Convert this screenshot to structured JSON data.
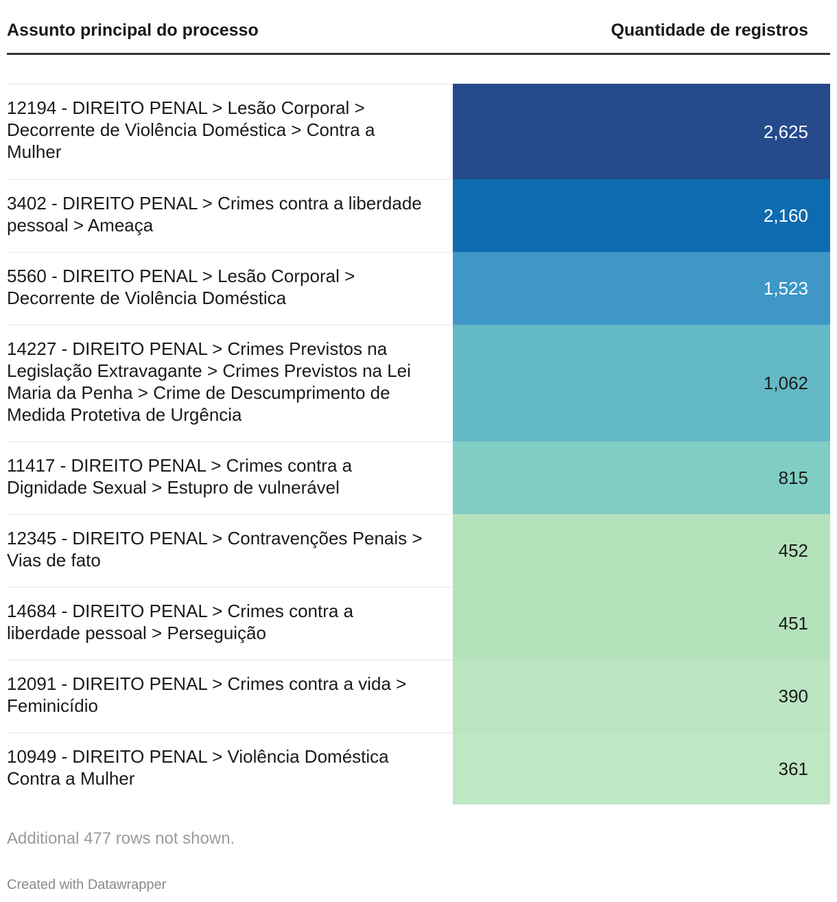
{
  "chart_data": {
    "type": "table",
    "columns": [
      "Assunto principal do processo",
      "Quantidade de registros"
    ],
    "rows": [
      {
        "subject": "12194 - DIREITO PENAL > Lesão Corporal > Decorrente de Violência Doméstica > Contra a Mulher",
        "count": 2625,
        "count_label": "2,625",
        "bg": "#264b8c",
        "fg": "#ffffff"
      },
      {
        "subject": "3402 - DIREITO PENAL > Crimes contra a liberdade pessoal > Ameaça",
        "count": 2160,
        "count_label": "2,160",
        "bg": "#0f6bb0",
        "fg": "#ffffff"
      },
      {
        "subject": "5560 - DIREITO PENAL > Lesão Corporal > Decorrente de Violência Doméstica",
        "count": 1523,
        "count_label": "1,523",
        "bg": "#3e97c6",
        "fg": "#ffffff"
      },
      {
        "subject": "14227 - DIREITO PENAL > Crimes Previstos na Legislação Extravagante > Crimes Previstos na Lei Maria da Penha > Crime de Descumprimento de Medida Protetiva de Urgência",
        "count": 1062,
        "count_label": "1,062",
        "bg": "#64b9c6",
        "fg": "#1a1a1a"
      },
      {
        "subject": "11417 - DIREITO PENAL > Crimes contra a Dignidade Sexual > Estupro de vulnerável",
        "count": 815,
        "count_label": "815",
        "bg": "#80cdc4",
        "fg": "#1a1a1a"
      },
      {
        "subject": "12345 - DIREITO PENAL > Contravenções Penais > Vias de fato",
        "count": 452,
        "count_label": "452",
        "bg": "#b4e2bb",
        "fg": "#1a1a1a"
      },
      {
        "subject": "14684 - DIREITO PENAL > Crimes contra a liberdade pessoal > Perseguição",
        "count": 451,
        "count_label": "451",
        "bg": "#b4e2bb",
        "fg": "#1a1a1a"
      },
      {
        "subject": "12091 - DIREITO PENAL > Crimes contra a vida > Feminicídio",
        "count": 390,
        "count_label": "390",
        "bg": "#bae5c0",
        "fg": "#1a1a1a"
      },
      {
        "subject": "10949 - DIREITO PENAL > Violência Doméstica Contra a Mulher",
        "count": 361,
        "count_label": "361",
        "bg": "#bee7c4",
        "fg": "#1a1a1a"
      }
    ]
  },
  "header": {
    "subject_col": "Assunto principal do processo",
    "count_col": "Quantidade de registros"
  },
  "footer": {
    "note": "Additional 477 rows not shown.",
    "credit": "Created with Datawrapper"
  }
}
